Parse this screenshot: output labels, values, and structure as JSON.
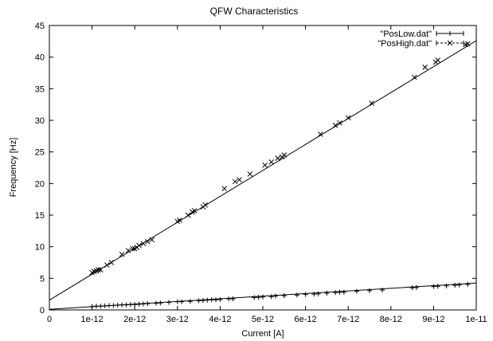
{
  "chart_data": {
    "type": "scatter",
    "title": "QFW Characteristics",
    "xlabel": "Current [A]",
    "ylabel": "Frequency [Hz]",
    "xlim": [
      0,
      1e-11
    ],
    "ylim": [
      0,
      45
    ],
    "grid": false,
    "legend_position": "top-right",
    "x_tick_labels": [
      "0",
      "1e-12",
      "2e-12",
      "3e-12",
      "4e-12",
      "5e-12",
      "6e-12",
      "7e-12",
      "8e-12",
      "9e-12",
      "1e-11"
    ],
    "y_tick_labels": [
      "0",
      "5",
      "10",
      "15",
      "20",
      "25",
      "30",
      "35",
      "40",
      "45"
    ],
    "x_ticks": [
      0,
      1e-12,
      2e-12,
      3e-12,
      4e-12,
      5e-12,
      6e-12,
      7e-12,
      8e-12,
      9e-12,
      1e-11
    ],
    "y_ticks": [
      0,
      5,
      10,
      15,
      20,
      25,
      30,
      35,
      40,
      45
    ],
    "series": [
      {
        "name": "\"PosLow.dat\"",
        "marker": "plus",
        "x": [
          1e-12,
          1.1e-12,
          1.2e-12,
          1.3e-12,
          1.4e-12,
          1.5e-12,
          1.6e-12,
          1.7e-12,
          1.8e-12,
          1.9e-12,
          2e-12,
          2.1e-12,
          2.2e-12,
          2.3e-12,
          2.5e-12,
          2.6e-12,
          2.8e-12,
          3e-12,
          3.1e-12,
          3.3e-12,
          3.5e-12,
          3.6e-12,
          3.7e-12,
          3.8e-12,
          3.9e-12,
          4e-12,
          4.2e-12,
          4.3e-12,
          4.8e-12,
          4.9e-12,
          5e-12,
          5.2e-12,
          5.3e-12,
          5.5e-12,
          5.8e-12,
          6e-12,
          6.2e-12,
          6.3e-12,
          6.5e-12,
          6.7e-12,
          6.8e-12,
          6.9e-12,
          7.2e-12,
          7.5e-12,
          7.8e-12,
          8.5e-12,
          8.6e-12,
          9e-12,
          9.1e-12,
          9.3e-12,
          9.5e-12,
          9.6e-12,
          9.8e-12
        ],
        "y": [
          0.55,
          0.6,
          0.6,
          0.65,
          0.7,
          0.7,
          0.75,
          0.8,
          0.8,
          0.85,
          0.85,
          0.9,
          0.95,
          1.0,
          1.05,
          1.1,
          1.2,
          1.3,
          1.3,
          1.35,
          1.45,
          1.5,
          1.55,
          1.6,
          1.6,
          1.65,
          1.75,
          1.75,
          1.95,
          2.0,
          2.05,
          2.1,
          2.2,
          2.25,
          2.35,
          2.45,
          2.5,
          2.55,
          2.65,
          2.75,
          2.8,
          2.8,
          2.95,
          3.05,
          3.15,
          3.5,
          3.55,
          3.7,
          3.75,
          3.8,
          3.9,
          3.95,
          4.05
        ]
      },
      {
        "name": "\"PosHigh.dat\"",
        "marker": "cross",
        "x": [
          1e-12,
          1.05e-12,
          1.1e-12,
          1.15e-12,
          1.2e-12,
          1.35e-12,
          1.45e-12,
          1.7e-12,
          1.85e-12,
          1.95e-12,
          2e-12,
          2.05e-12,
          2.1e-12,
          2.2e-12,
          2.3e-12,
          2.4e-12,
          3e-12,
          3.05e-12,
          3.25e-12,
          3.35e-12,
          3.4e-12,
          3.6e-12,
          3.65e-12,
          4.1e-12,
          4.35e-12,
          4.45e-12,
          4.7e-12,
          5.05e-12,
          5.2e-12,
          5.35e-12,
          5.45e-12,
          5.5e-12,
          6.35e-12,
          6.7e-12,
          6.8e-12,
          7e-12,
          7.55e-12,
          8.55e-12,
          8.8e-12,
          9.05e-12,
          9.1e-12,
          9.75e-12,
          9.8e-12
        ],
        "y": [
          5.9,
          6.1,
          6.2,
          6.35,
          6.35,
          7.1,
          7.5,
          8.8,
          9.4,
          9.7,
          9.7,
          9.9,
          10.2,
          10.5,
          10.8,
          11.1,
          14.0,
          14.2,
          15.0,
          15.5,
          15.7,
          16.3,
          16.6,
          19.2,
          20.3,
          20.6,
          21.5,
          22.9,
          23.4,
          24.0,
          24.2,
          24.5,
          27.8,
          29.2,
          29.6,
          30.4,
          32.7,
          36.8,
          38.4,
          39.2,
          39.5,
          42.0,
          42.1
        ]
      }
    ],
    "fit_lines": [
      {
        "series": "\"PosLow.dat\"",
        "x": [
          0,
          1e-11
        ],
        "y": [
          0.1,
          4.25
        ]
      },
      {
        "series": "\"PosHigh.dat\"",
        "x": [
          0,
          1e-11
        ],
        "y": [
          1.55,
          42.6
        ]
      }
    ]
  }
}
